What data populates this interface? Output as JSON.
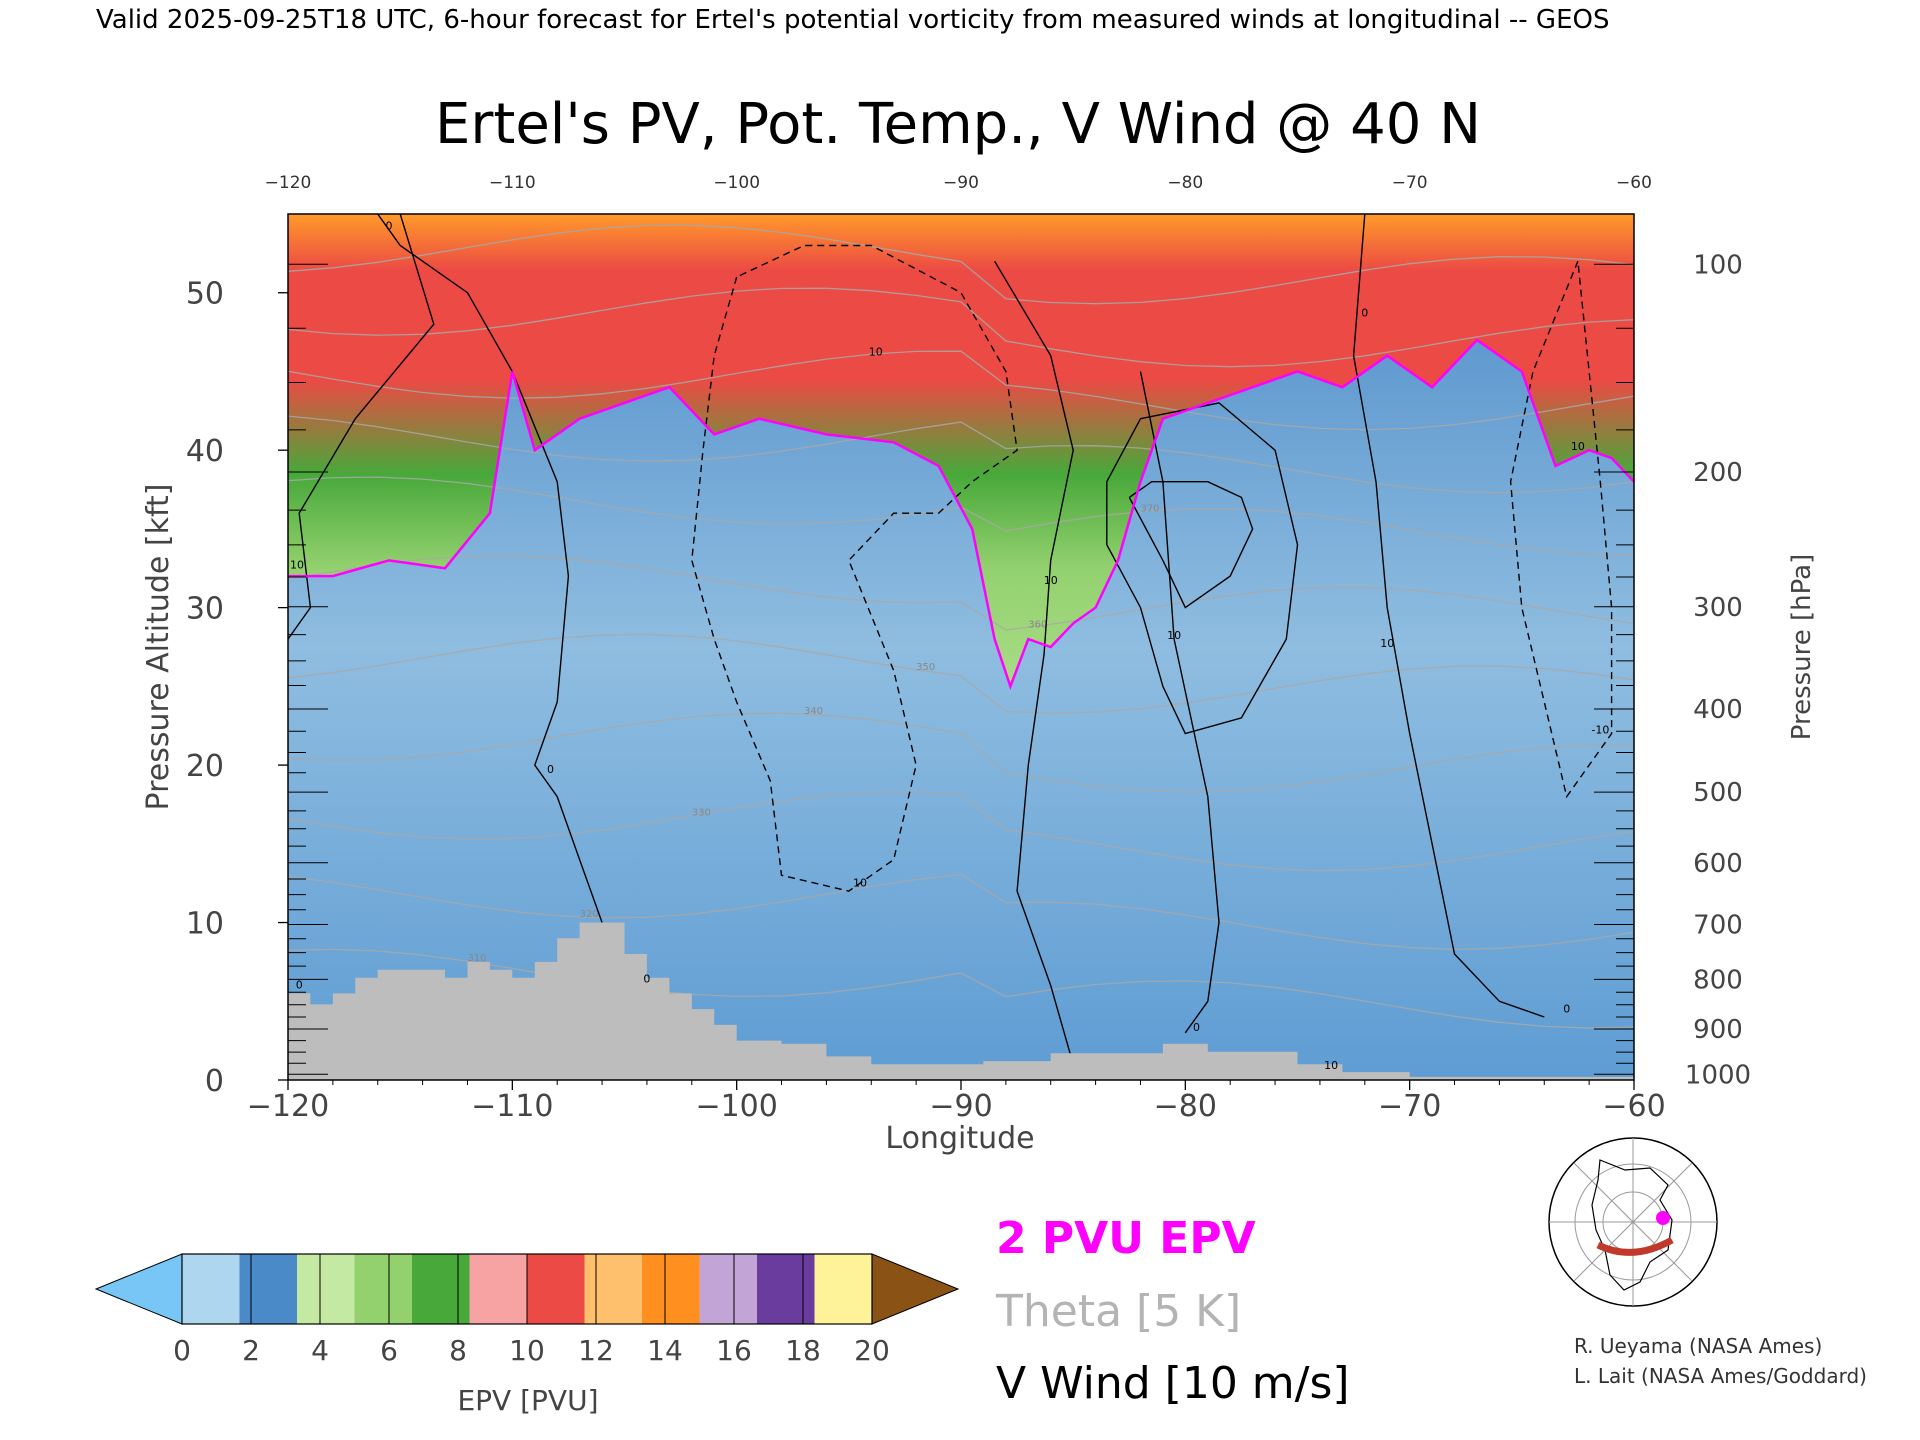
{
  "header_text": "Valid 2025-09-25T18 UTC, 6-hour forecast for Ertel's potential vorticity from measured winds at longitudinal -- GEOS",
  "chart_data": {
    "type": "heatmap",
    "title": "Ertel's PV, Pot. Temp., V Wind @ 40 N",
    "xlabel": "Longitude",
    "ylabel_left": "Pressure Altitude [kft]",
    "ylabel_right": "Pressure [hPa]",
    "xlim": [
      -120,
      -60
    ],
    "ylim_kft": [
      0,
      55
    ],
    "x_ticks": [
      -120,
      -110,
      -100,
      -90,
      -80,
      -70,
      -60
    ],
    "x_tick_labels": [
      "−120",
      "−110",
      "−100",
      "−90",
      "−80",
      "−70",
      "−60"
    ],
    "top_tick_labels": [
      "−120",
      "−110",
      "−100",
      "−90",
      "−80",
      "−70",
      "−60"
    ],
    "y_ticks_kft": [
      0,
      10,
      20,
      30,
      40,
      50
    ],
    "y_tick_labels": [
      "0",
      "10",
      "20",
      "30",
      "40",
      "50"
    ],
    "pressure_ticks": [
      {
        "hpa": 100,
        "label": "100"
      },
      {
        "hpa": 200,
        "label": "200"
      },
      {
        "hpa": 300,
        "label": "300"
      },
      {
        "hpa": 400,
        "label": "400"
      },
      {
        "hpa": 500,
        "label": "500"
      },
      {
        "hpa": 600,
        "label": "600"
      },
      {
        "hpa": 700,
        "label": "700"
      },
      {
        "hpa": 800,
        "label": "800"
      },
      {
        "hpa": 900,
        "label": "900"
      },
      {
        "hpa": 1000,
        "label": "1000"
      }
    ],
    "tropopause_2pvu_kft": [
      [
        -120,
        32
      ],
      [
        -118,
        32
      ],
      [
        -115.5,
        33
      ],
      [
        -113,
        32.5
      ],
      [
        -111,
        36
      ],
      [
        -110,
        45
      ],
      [
        -109,
        40
      ],
      [
        -107,
        42
      ],
      [
        -105,
        43
      ],
      [
        -103,
        44
      ],
      [
        -101,
        41
      ],
      [
        -99,
        42
      ],
      [
        -96,
        41
      ],
      [
        -93,
        40.5
      ],
      [
        -91,
        39
      ],
      [
        -89.5,
        35
      ],
      [
        -88.5,
        28
      ],
      [
        -87.8,
        25
      ],
      [
        -87,
        28
      ],
      [
        -86,
        27.5
      ],
      [
        -85,
        29
      ],
      [
        -84,
        30
      ],
      [
        -83,
        33
      ],
      [
        -82,
        38
      ],
      [
        -81,
        42
      ],
      [
        -79,
        43
      ],
      [
        -77,
        44
      ],
      [
        -75,
        45
      ],
      [
        -73,
        44
      ],
      [
        -71,
        46
      ],
      [
        -69,
        44
      ],
      [
        -67,
        47
      ],
      [
        -65,
        45
      ],
      [
        -63.5,
        39
      ],
      [
        -62,
        40
      ],
      [
        -61,
        39.5
      ],
      [
        -60,
        38
      ]
    ],
    "surface_kft": [
      [
        -120,
        5.5
      ],
      [
        -119,
        4.8
      ],
      [
        -118,
        5.5
      ],
      [
        -117,
        6.5
      ],
      [
        -116,
        7
      ],
      [
        -114,
        7
      ],
      [
        -113,
        6.5
      ],
      [
        -112,
        7.5
      ],
      [
        -111,
        7
      ],
      [
        -110,
        6.5
      ],
      [
        -109,
        7.5
      ],
      [
        -108,
        9
      ],
      [
        -107,
        10
      ],
      [
        -106,
        10
      ],
      [
        -105,
        8
      ],
      [
        -104,
        6.5
      ],
      [
        -103,
        5.5
      ],
      [
        -102,
        4.5
      ],
      [
        -101,
        3.5
      ],
      [
        -100,
        2.5
      ],
      [
        -98,
        2.3
      ],
      [
        -96,
        1.5
      ],
      [
        -94,
        1
      ],
      [
        -90,
        1
      ],
      [
        -89,
        1.2
      ],
      [
        -86,
        1.7
      ],
      [
        -83,
        1.7
      ],
      [
        -81,
        2.3
      ],
      [
        -79,
        1.8
      ],
      [
        -75,
        1
      ],
      [
        -73,
        0.5
      ],
      [
        -70,
        0.2
      ],
      [
        -60,
        0
      ]
    ],
    "theta_levels_K": [
      310,
      320,
      330,
      340,
      350,
      360,
      370,
      380,
      390,
      400,
      410
    ],
    "theta_labels": [
      "310",
      "320",
      "330",
      "340",
      "350",
      "360",
      "370"
    ],
    "vwind_zero_contours": [
      [
        [
          -105,
          0
        ],
        [
          -105.5,
          8
        ],
        [
          -107,
          14
        ],
        [
          -108,
          18
        ],
        [
          -109,
          20
        ],
        [
          -108,
          24
        ],
        [
          -107.5,
          32
        ],
        [
          -108,
          38
        ],
        [
          -110,
          45
        ],
        [
          -112,
          50
        ],
        [
          -115,
          53
        ],
        [
          -116,
          55
        ]
      ],
      [
        [
          -88.5,
          52
        ],
        [
          -86,
          46
        ],
        [
          -85,
          40
        ],
        [
          -86,
          33
        ],
        [
          -86.3,
          27
        ],
        [
          -87,
          20
        ],
        [
          -87.5,
          12
        ],
        [
          -86,
          6
        ],
        [
          -85,
          1
        ]
      ],
      [
        [
          -82,
          45
        ],
        [
          -81,
          38
        ],
        [
          -80.5,
          28
        ],
        [
          -79,
          18
        ],
        [
          -78.5,
          10
        ],
        [
          -79,
          5
        ],
        [
          -80,
          3
        ]
      ],
      [
        [
          -72,
          55
        ],
        [
          -72.5,
          46
        ],
        [
          -71.5,
          38
        ],
        [
          -71,
          30
        ],
        [
          -70,
          22
        ],
        [
          -69,
          15
        ],
        [
          -68,
          8
        ],
        [
          -66,
          5
        ],
        [
          -64,
          4
        ]
      ],
      [
        [
          -115,
          55
        ],
        [
          -113.5,
          48
        ],
        [
          -117,
          42
        ],
        [
          -119.5,
          36
        ],
        [
          -119,
          30
        ],
        [
          -120,
          28
        ]
      ]
    ],
    "vwind_neg_contours": [
      [
        [
          -100,
          51
        ],
        [
          -101,
          46
        ],
        [
          -101.5,
          40
        ],
        [
          -102,
          33
        ],
        [
          -101,
          28
        ],
        [
          -100,
          24
        ],
        [
          -98.5,
          19
        ],
        [
          -98,
          13
        ],
        [
          -95,
          12
        ],
        [
          -93,
          14
        ],
        [
          -92,
          20
        ],
        [
          -93,
          26
        ],
        [
          -95,
          33
        ],
        [
          -93,
          36
        ],
        [
          -91,
          36
        ],
        [
          -89.5,
          38
        ],
        [
          -87.5,
          40
        ],
        [
          -88,
          45
        ],
        [
          -90,
          50
        ],
        [
          -94,
          53
        ],
        [
          -97,
          53
        ],
        [
          -100,
          51
        ]
      ],
      [
        [
          -62.5,
          52
        ],
        [
          -64.5,
          45
        ],
        [
          -65.5,
          38
        ],
        [
          -65,
          30
        ],
        [
          -64,
          24
        ],
        [
          -63,
          18
        ],
        [
          -61,
          22
        ],
        [
          -61,
          30
        ],
        [
          -61.5,
          38
        ],
        [
          -62,
          45
        ],
        [
          -62.5,
          52
        ]
      ]
    ],
    "vwind_pos_contours": [
      [
        [
          -82.5,
          37
        ],
        [
          -81,
          33
        ],
        [
          -80,
          30
        ],
        [
          -78,
          32
        ],
        [
          -77,
          35
        ],
        [
          -77.5,
          37
        ],
        [
          -79,
          38
        ],
        [
          -81.5,
          38
        ],
        [
          -82.5,
          37
        ]
      ],
      [
        [
          -82,
          42
        ],
        [
          -78.5,
          43
        ],
        [
          -76,
          40
        ],
        [
          -75,
          34
        ],
        [
          -75.5,
          28
        ],
        [
          -77.5,
          23
        ],
        [
          -80,
          22
        ],
        [
          -81,
          25
        ],
        [
          -82,
          30
        ],
        [
          -83.5,
          34
        ],
        [
          -83.5,
          38
        ],
        [
          -82,
          42
        ]
      ]
    ],
    "vwind_contour_labels": [
      {
        "x": -104,
        "y": 6.2,
        "text": "0"
      },
      {
        "x": -119.5,
        "y": 5.8,
        "text": "0"
      },
      {
        "x": -108.3,
        "y": 19.5,
        "text": "0"
      },
      {
        "x": -86,
        "y": 31.5,
        "text": "10"
      },
      {
        "x": -80.5,
        "y": 28,
        "text": "10"
      },
      {
        "x": -71,
        "y": 27.5,
        "text": "10"
      },
      {
        "x": -94.5,
        "y": 12.3,
        "text": "10"
      },
      {
        "x": -93.8,
        "y": 46,
        "text": "10"
      },
      {
        "x": -72,
        "y": 48.5,
        "text": "0"
      },
      {
        "x": -115.5,
        "y": 54,
        "text": "0"
      },
      {
        "x": -119.6,
        "y": 32.5,
        "text": "10"
      },
      {
        "x": -73.5,
        "y": 0.7,
        "text": "10"
      },
      {
        "x": -62.5,
        "y": 40,
        "text": "10"
      },
      {
        "x": -61.5,
        "y": 22,
        "text": "-10"
      },
      {
        "x": -63,
        "y": 4.3,
        "text": "0"
      },
      {
        "x": -79.5,
        "y": 3.1,
        "text": "0"
      }
    ]
  },
  "colorbar": {
    "label": "EPV [PVU]",
    "tick_labels": [
      "0",
      "2",
      "4",
      "6",
      "8",
      "10",
      "12",
      "14",
      "16",
      "18",
      "20"
    ],
    "under_color": "#78c6f5",
    "over_color": "#8a5214",
    "colors": [
      "#aed6ee",
      "#4b8ac8",
      "#c3e9a3",
      "#93d16f",
      "#48a83a",
      "#f7a3a3",
      "#ec4a44",
      "#ffc06d",
      "#ff8f1e",
      "#c3a4d6",
      "#6a3c9e",
      "#fff39a"
    ]
  },
  "legend": {
    "pvu": "2 PVU EPV",
    "theta": "Theta [5 K]",
    "vwind": "V Wind [10 m/s]",
    "pvu_color": "#ff00ff",
    "theta_color": "#b4b4b4",
    "vwind_color": "#000000"
  },
  "credits": {
    "line1": "R. Ueyama (NASA Ames)",
    "line2": "L. Lait (NASA Ames/Goddard)"
  }
}
